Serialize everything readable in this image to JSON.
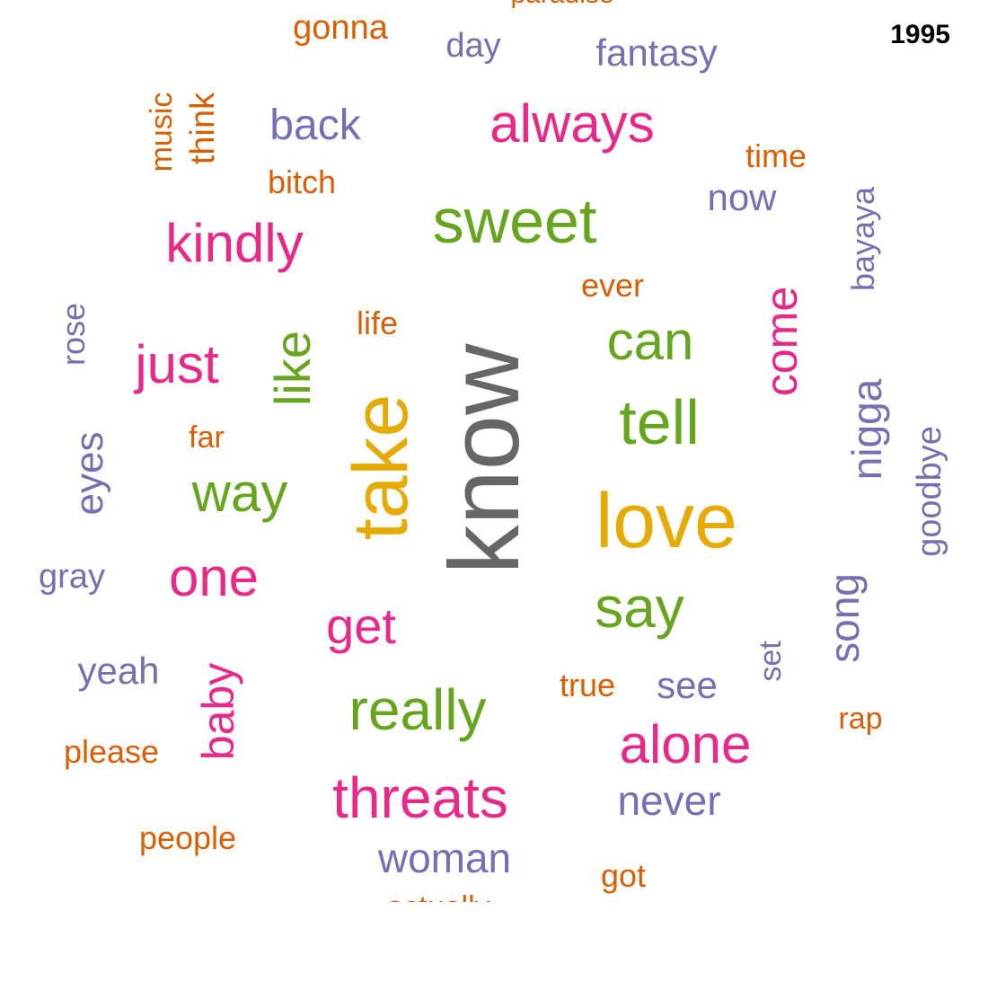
{
  "year_label": "1995",
  "palette": {
    "gray": "#666666",
    "orange": "#d95f02",
    "purple": "#7570b3",
    "pink": "#e7298a",
    "green": "#66a61e",
    "gold": "#e6ab02"
  },
  "words": [
    {
      "text": "paradise",
      "color": "orange"
    },
    {
      "text": "gonna",
      "color": "orange"
    },
    {
      "text": "day",
      "color": "purple"
    },
    {
      "text": "fantasy",
      "color": "purple"
    },
    {
      "text": "music",
      "color": "orange"
    },
    {
      "text": "think",
      "color": "orange"
    },
    {
      "text": "back",
      "color": "purple"
    },
    {
      "text": "always",
      "color": "pink"
    },
    {
      "text": "time",
      "color": "orange"
    },
    {
      "text": "bitch",
      "color": "orange"
    },
    {
      "text": "now",
      "color": "purple"
    },
    {
      "text": "bayaya",
      "color": "purple"
    },
    {
      "text": "sweet",
      "color": "green"
    },
    {
      "text": "kindly",
      "color": "pink"
    },
    {
      "text": "ever",
      "color": "orange"
    },
    {
      "text": "rose",
      "color": "purple"
    },
    {
      "text": "life",
      "color": "orange"
    },
    {
      "text": "like",
      "color": "green"
    },
    {
      "text": "can",
      "color": "green"
    },
    {
      "text": "come",
      "color": "pink"
    },
    {
      "text": "just",
      "color": "pink"
    },
    {
      "text": "know",
      "color": "gray"
    },
    {
      "text": "take",
      "color": "gold"
    },
    {
      "text": "tell",
      "color": "green"
    },
    {
      "text": "nigga",
      "color": "purple"
    },
    {
      "text": "far",
      "color": "orange"
    },
    {
      "text": "eyes",
      "color": "purple"
    },
    {
      "text": "goodbye",
      "color": "purple"
    },
    {
      "text": "way",
      "color": "green"
    },
    {
      "text": "love",
      "color": "gold"
    },
    {
      "text": "gray",
      "color": "purple"
    },
    {
      "text": "one",
      "color": "pink"
    },
    {
      "text": "song",
      "color": "purple"
    },
    {
      "text": "say",
      "color": "green"
    },
    {
      "text": "get",
      "color": "pink"
    },
    {
      "text": "set",
      "color": "purple"
    },
    {
      "text": "yeah",
      "color": "purple"
    },
    {
      "text": "baby",
      "color": "pink"
    },
    {
      "text": "true",
      "color": "orange"
    },
    {
      "text": "see",
      "color": "purple"
    },
    {
      "text": "rap",
      "color": "orange"
    },
    {
      "text": "really",
      "color": "green"
    },
    {
      "text": "alone",
      "color": "pink"
    },
    {
      "text": "please",
      "color": "orange"
    },
    {
      "text": "threats",
      "color": "pink"
    },
    {
      "text": "never",
      "color": "purple"
    },
    {
      "text": "people",
      "color": "orange"
    },
    {
      "text": "woman",
      "color": "purple"
    },
    {
      "text": "got",
      "color": "orange"
    },
    {
      "text": "actually",
      "color": "orange"
    }
  ]
}
